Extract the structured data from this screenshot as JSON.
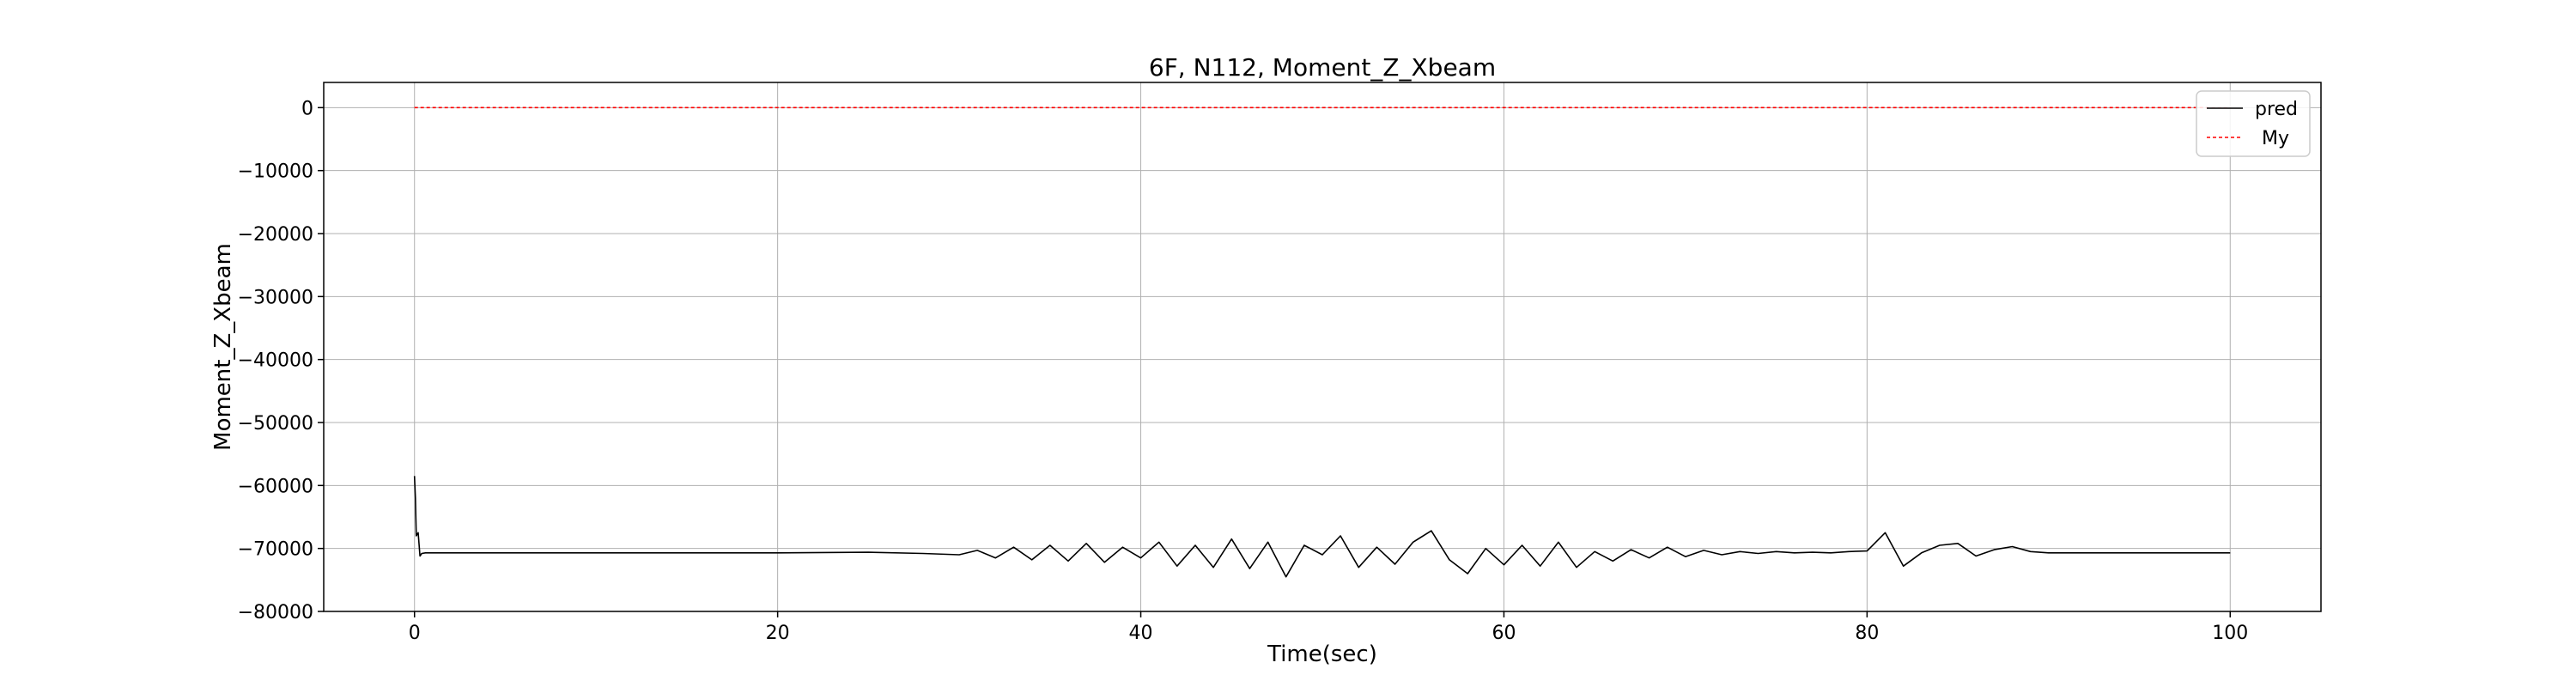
{
  "chart_data": {
    "type": "line",
    "title": "6F, N112, Moment_Z_Xbeam",
    "xlabel": "Time(sec)",
    "ylabel": "Moment_Z_Xbeam",
    "xlim": [
      -5,
      105
    ],
    "ylim": [
      -80000,
      4000
    ],
    "xticks": [
      0,
      20,
      40,
      60,
      80,
      100
    ],
    "yticks": [
      0,
      -10000,
      -20000,
      -30000,
      -40000,
      -50000,
      -60000,
      -70000,
      -80000
    ],
    "xtick_labels": [
      "0",
      "20",
      "40",
      "60",
      "80",
      "100"
    ],
    "ytick_labels": [
      "0",
      "−10000",
      "−20000",
      "−30000",
      "−40000",
      "−50000",
      "−60000",
      "−70000",
      "−80000"
    ],
    "grid": true,
    "legend_position": "top-right",
    "series": [
      {
        "name": "pred",
        "color": "#000000",
        "style": "solid",
        "x": [
          0,
          0.05,
          0.1,
          0.2,
          0.3,
          0.4,
          0.6,
          1,
          2,
          5,
          10,
          15,
          20,
          25,
          28,
          30,
          31,
          32,
          33,
          34,
          35,
          36,
          37,
          38,
          39,
          40,
          41,
          42,
          43,
          44,
          45,
          46,
          47,
          48,
          49,
          50,
          51,
          52,
          53,
          54,
          55,
          56,
          57,
          58,
          59,
          60,
          61,
          62,
          63,
          64,
          65,
          66,
          67,
          68,
          69,
          70,
          71,
          72,
          73,
          74,
          75,
          76,
          77,
          78,
          79,
          80,
          81,
          82,
          83,
          84,
          85,
          86,
          87,
          88,
          89,
          90,
          92,
          95,
          98,
          100
        ],
        "y": [
          -58500,
          -62000,
          -68000,
          -67500,
          -71200,
          -70800,
          -70700,
          -70700,
          -70700,
          -70700,
          -70700,
          -70700,
          -70700,
          -70600,
          -70800,
          -71000,
          -70300,
          -71500,
          -69800,
          -71800,
          -69500,
          -72000,
          -69200,
          -72200,
          -69800,
          -71500,
          -69000,
          -72800,
          -69500,
          -73000,
          -68500,
          -73200,
          -69000,
          -74500,
          -69500,
          -71000,
          -68000,
          -73000,
          -69800,
          -72500,
          -69000,
          -67200,
          -71800,
          -74000,
          -70000,
          -72600,
          -69500,
          -72800,
          -69000,
          -73000,
          -70500,
          -72000,
          -70200,
          -71500,
          -69800,
          -71300,
          -70300,
          -71000,
          -70500,
          -70800,
          -70500,
          -70700,
          -70600,
          -70700,
          -70500,
          -70400,
          -67500,
          -72800,
          -70700,
          -69500,
          -69200,
          -71200,
          -70200,
          -69700,
          -70500,
          -70700,
          -70700,
          -70700,
          -70700,
          -70700
        ]
      },
      {
        "name": "My",
        "color": "#ff0000",
        "style": "dashed",
        "x": [
          0,
          100
        ],
        "y": [
          0,
          0
        ]
      }
    ]
  }
}
